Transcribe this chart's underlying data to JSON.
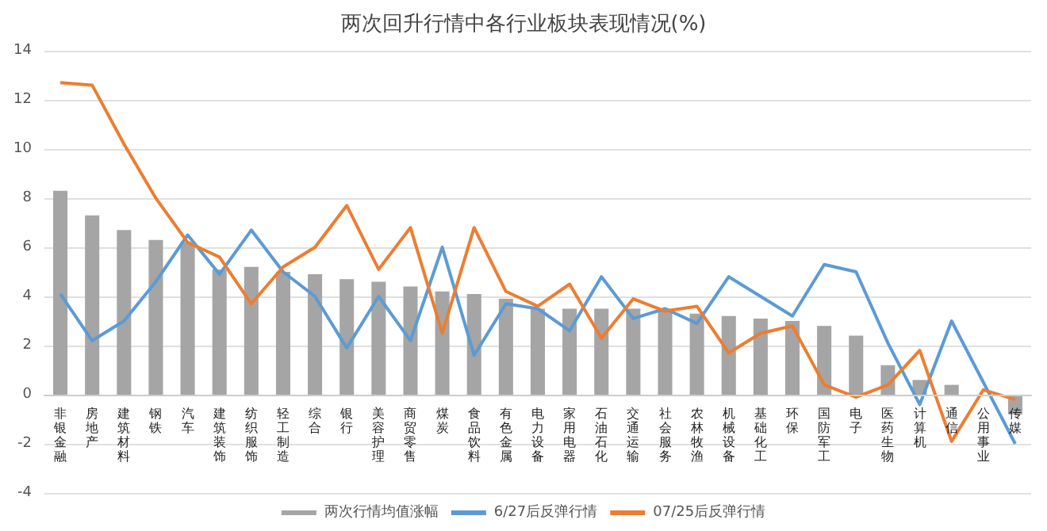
{
  "chart_data": {
    "type": "bar",
    "title": "两次回升行情中各行业板块表现情况(%)",
    "categories": [
      "非银金融",
      "房地产",
      "建筑材料",
      "钢铁",
      "汽车",
      "建筑装饰",
      "纺织服饰",
      "轻工制造",
      "综合",
      "银行",
      "美容护理",
      "商贸零售",
      "煤炭",
      "食品饮料",
      "有色金属",
      "电力设备",
      "家用电器",
      "石油石化",
      "交通运输",
      "社会服务",
      "农林牧渔",
      "机械设备",
      "基础化工",
      "环保",
      "国防军工",
      "电子",
      "医药生物",
      "计算机",
      "通信",
      "公用事业",
      "传媒"
    ],
    "series": [
      {
        "name": "两次行情均值涨幅",
        "color": "#a5a5a5",
        "values": [
          8.3,
          7.3,
          6.7,
          6.3,
          6.2,
          5.1,
          5.2,
          5.0,
          4.9,
          4.7,
          4.6,
          4.4,
          4.2,
          4.1,
          3.9,
          3.5,
          3.5,
          3.5,
          3.5,
          3.5,
          3.3,
          3.2,
          3.1,
          3.0,
          2.8,
          2.4,
          1.2,
          0.6,
          0.4,
          null,
          -0.8
        ]
      },
      {
        "name": "6/27后反弹行情",
        "color": "#5b9bd5",
        "type": "line",
        "values": [
          4.1,
          2.2,
          3.0,
          4.6,
          6.5,
          4.9,
          6.7,
          5.0,
          4.0,
          1.9,
          4.0,
          2.2,
          6.0,
          1.6,
          3.7,
          3.5,
          2.6,
          4.8,
          3.1,
          3.5,
          2.9,
          4.8,
          4.0,
          3.2,
          5.3,
          5.0,
          2.1,
          -0.4,
          3.0,
          0.5,
          -2.0
        ]
      },
      {
        "name": "07/25后反弹行情",
        "color": "#ed7d31",
        "type": "line",
        "values": [
          12.7,
          12.6,
          10.2,
          8.0,
          6.2,
          5.6,
          3.7,
          5.2,
          6.0,
          7.7,
          5.1,
          6.8,
          2.5,
          6.8,
          4.2,
          3.6,
          4.5,
          2.3,
          3.9,
          3.4,
          3.6,
          1.7,
          2.5,
          2.8,
          0.4,
          -0.1,
          0.4,
          1.8,
          -1.9,
          0.2,
          -0.2
        ]
      }
    ],
    "ylim": [
      -4,
      14
    ],
    "yticks": [
      -4,
      -2,
      0,
      2,
      4,
      6,
      8,
      10,
      12,
      14
    ],
    "grid": "y",
    "legend": "bottom",
    "marker": "none",
    "line_style": "solid"
  }
}
